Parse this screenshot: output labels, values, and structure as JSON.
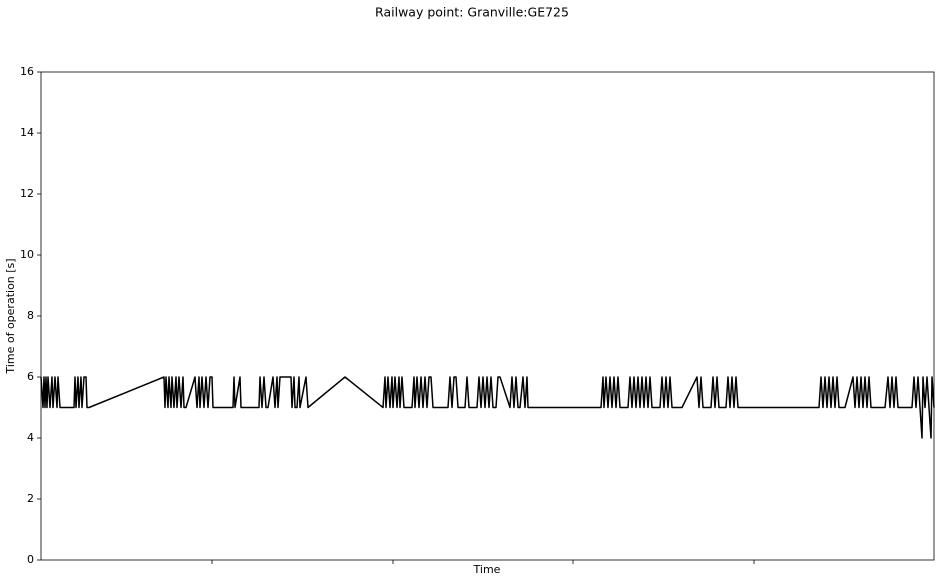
{
  "chart_data": {
    "type": "line",
    "title": "Railway point: Granville:GE725",
    "x_label": "Time",
    "y_label": "Time of operation [s]",
    "x": [
      0,
      2,
      3,
      4,
      5,
      6,
      7,
      9,
      11,
      12,
      14,
      16,
      17,
      19,
      33,
      34,
      35,
      37,
      38,
      40,
      41,
      43,
      45,
      46,
      48,
      123,
      124,
      125,
      127,
      128,
      130,
      131,
      133,
      135,
      136,
      138,
      140,
      142,
      143,
      145,
      154,
      156,
      158,
      159,
      161,
      163,
      165,
      167,
      169,
      171,
      172,
      175,
      192,
      193,
      194,
      199,
      200,
      202,
      218,
      219,
      221,
      223,
      225,
      227,
      232,
      234,
      236,
      237,
      239,
      250,
      251,
      253,
      254,
      256,
      258,
      259,
      265,
      267,
      304,
      342,
      344,
      345,
      347,
      349,
      351,
      352,
      354,
      356,
      358,
      359,
      361,
      363,
      371,
      373,
      374,
      376,
      378,
      380,
      382,
      384,
      386,
      388,
      390,
      392,
      394,
      407,
      409,
      411,
      413,
      415,
      417,
      424,
      426,
      428,
      436,
      438,
      440,
      442,
      444,
      446,
      448,
      450,
      452,
      455,
      457,
      459,
      469,
      471,
      473,
      475,
      477,
      479,
      482,
      484,
      486,
      487,
      560,
      562,
      563,
      565,
      567,
      569,
      571,
      573,
      575,
      577,
      579,
      581,
      587,
      589,
      591,
      593,
      595,
      597,
      599,
      601,
      603,
      605,
      607,
      609,
      611,
      619,
      621,
      623,
      625,
      627,
      629,
      631,
      641,
      656,
      658,
      660,
      662,
      670,
      672,
      674,
      676,
      678,
      685,
      687,
      689,
      691,
      693,
      695,
      697,
      778,
      780,
      782,
      784,
      786,
      788,
      790,
      792,
      794,
      796,
      798,
      804,
      812,
      814,
      816,
      818,
      820,
      822,
      824,
      826,
      828,
      830,
      844,
      847,
      849,
      851,
      853,
      855,
      857,
      871,
      873,
      875,
      877,
      879,
      881,
      882,
      884,
      886,
      888,
      890,
      891,
      893
    ],
    "series": [
      {
        "name": "Time of operation",
        "color": "#000000",
        "values": [
          6,
          5,
          6,
          5,
          6,
          5,
          6,
          5,
          6,
          5,
          6,
          5,
          6,
          5,
          5,
          6,
          5,
          6,
          5,
          6,
          5,
          6,
          6,
          5,
          5,
          6,
          5,
          6,
          5,
          6,
          5,
          6,
          5,
          6,
          5,
          6,
          5,
          6,
          5,
          5,
          6,
          5,
          6,
          5,
          6,
          5,
          6,
          5,
          6,
          6,
          5,
          5,
          5,
          6,
          5,
          6,
          5,
          5,
          5,
          6,
          5,
          6,
          5,
          5,
          6,
          5,
          6,
          5,
          6,
          6,
          5,
          6,
          5,
          5,
          6,
          5,
          6,
          5,
          6,
          5,
          6,
          5,
          6,
          5,
          6,
          5,
          6,
          5,
          6,
          5,
          6,
          5,
          5,
          6,
          5,
          6,
          5,
          6,
          5,
          6,
          5,
          6,
          6,
          5,
          5,
          5,
          6,
          5,
          6,
          6,
          5,
          5,
          6,
          5,
          5,
          6,
          5,
          6,
          5,
          6,
          5,
          6,
          5,
          5,
          6,
          6,
          5,
          6,
          5,
          6,
          5,
          5,
          6,
          5,
          6,
          5,
          5,
          6,
          5,
          6,
          5,
          6,
          5,
          6,
          5,
          6,
          5,
          5,
          5,
          6,
          5,
          6,
          5,
          6,
          5,
          6,
          5,
          6,
          5,
          6,
          5,
          5,
          6,
          5,
          6,
          5,
          6,
          5,
          5,
          6,
          5,
          6,
          5,
          5,
          6,
          5,
          6,
          5,
          5,
          6,
          5,
          6,
          5,
          6,
          5,
          5,
          6,
          5,
          6,
          5,
          6,
          5,
          6,
          5,
          6,
          5,
          5,
          6,
          5,
          6,
          5,
          6,
          5,
          6,
          5,
          6,
          5,
          5,
          6,
          5,
          6,
          5,
          6,
          5,
          5,
          6,
          5,
          6,
          5,
          4,
          6,
          5,
          6,
          5,
          4,
          6,
          5
        ]
      }
    ],
    "xlim": [
      0,
      893
    ],
    "xticks": [
      171,
      352,
      532,
      713
    ],
    "ylim": [
      0,
      16
    ],
    "yticks": [
      0,
      2,
      4,
      6,
      8,
      10,
      12,
      14,
      16
    ],
    "grid": false
  }
}
